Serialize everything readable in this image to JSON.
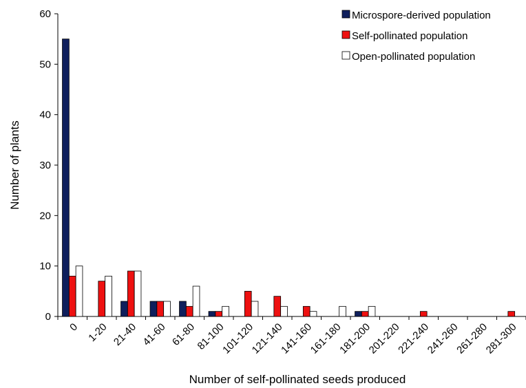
{
  "chart_data": {
    "type": "bar",
    "title": "",
    "xlabel": "Number of self-pollinated seeds produced",
    "ylabel": "Number of plants",
    "ylim": [
      0,
      60
    ],
    "yticks": [
      0,
      10,
      20,
      30,
      40,
      50,
      60
    ],
    "grid": false,
    "legend_position": "top-right",
    "categories": [
      "0",
      "1-20",
      "21-40",
      "41-60",
      "61-80",
      "81-100",
      "101-120",
      "121-140",
      "141-160",
      "161-180",
      "181-200",
      "201-220",
      "221-240",
      "241-260",
      "261-280",
      "281-300"
    ],
    "series": [
      {
        "name": "Microspore-derived population",
        "color": "#0f1f5c",
        "values": [
          55,
          0,
          3,
          3,
          3,
          1,
          0,
          0,
          0,
          0,
          1,
          0,
          0,
          0,
          0,
          0
        ]
      },
      {
        "name": "Self-pollinated population",
        "color": "#ee1111",
        "values": [
          8,
          7,
          9,
          3,
          2,
          1,
          5,
          4,
          2,
          0,
          1,
          0,
          1,
          0,
          0,
          1
        ]
      },
      {
        "name": "Open-pollinated population",
        "color": "#ffffff",
        "values": [
          10,
          8,
          9,
          3,
          6,
          2,
          3,
          2,
          1,
          2,
          2,
          0,
          0,
          0,
          0,
          0
        ]
      }
    ]
  }
}
